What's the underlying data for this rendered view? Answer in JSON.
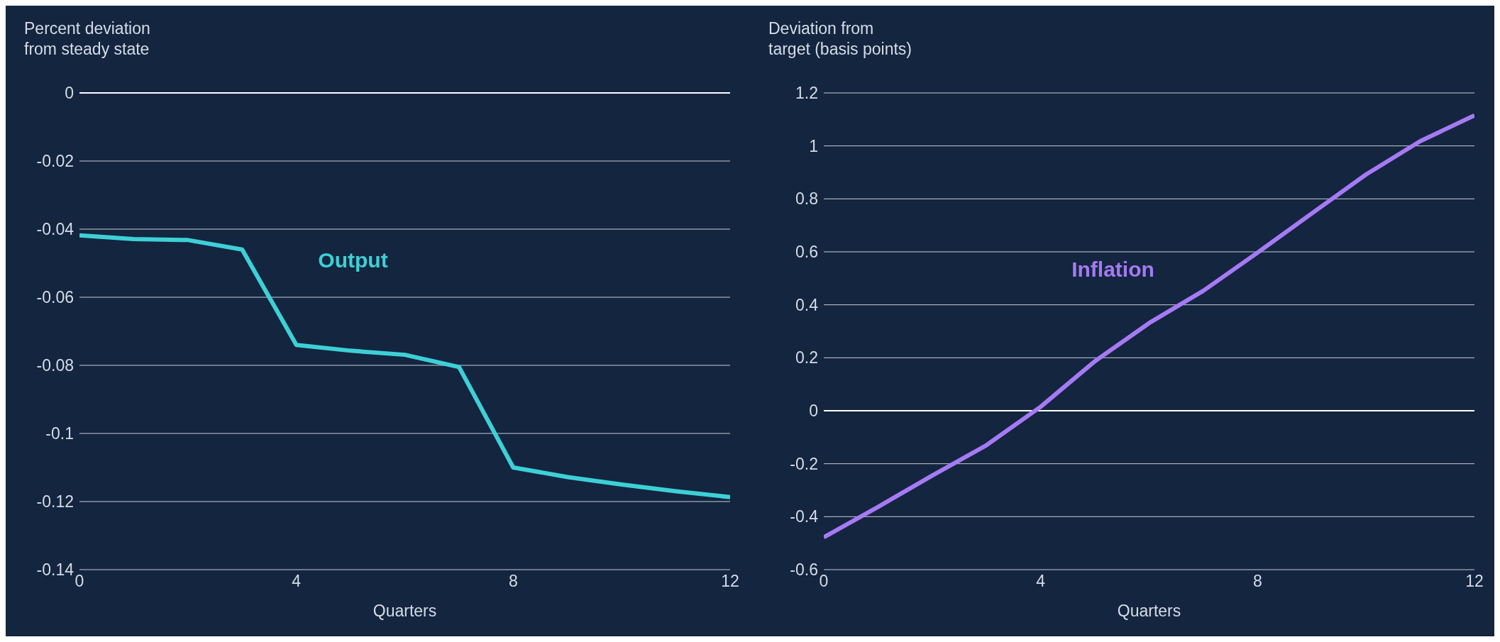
{
  "chart_data": [
    {
      "type": "line",
      "ylabel": "Percent deviation from steady state",
      "xlabel": "Quarters",
      "x": [
        0,
        1,
        2,
        3,
        4,
        5,
        6,
        7,
        8,
        9,
        10,
        11,
        12
      ],
      "series": [
        {
          "name": "Output",
          "color": "#3dd0d6",
          "values": [
            -0.0418,
            -0.0429,
            -0.0432,
            -0.046,
            -0.074,
            -0.0757,
            -0.0769,
            -0.0805,
            -0.11,
            -0.1128,
            -0.115,
            -0.117,
            -0.1187
          ]
        }
      ],
      "xlim": [
        0,
        12
      ],
      "xticks": [
        0,
        4,
        8,
        12
      ],
      "ylim": [
        -0.14,
        0
      ],
      "yticks": [
        -0.14,
        -0.12,
        -0.1,
        -0.08,
        -0.06,
        -0.04,
        -0.02,
        0
      ],
      "grid": "y",
      "legend": false,
      "marker": "none"
    },
    {
      "type": "line",
      "ylabel": "Deviation from target (basis points)",
      "xlabel": "Quarters",
      "x": [
        0,
        1,
        2,
        3,
        4,
        5,
        6,
        7,
        8,
        9,
        10,
        11,
        12
      ],
      "series": [
        {
          "name": "Inflation",
          "color": "#a67af4",
          "values": [
            -0.478,
            -0.363,
            -0.245,
            -0.13,
            0.015,
            0.187,
            0.331,
            0.453,
            0.597,
            0.745,
            0.892,
            1.018,
            1.115
          ]
        }
      ],
      "xlim": [
        0,
        12
      ],
      "xticks": [
        0,
        4,
        8,
        12
      ],
      "ylim": [
        -0.6,
        1.2
      ],
      "yticks": [
        -0.6,
        -0.4,
        -0.2,
        0,
        0.2,
        0.4,
        0.6,
        0.8,
        1,
        1.2
      ],
      "grid": "y",
      "legend": false,
      "marker": "none"
    }
  ]
}
